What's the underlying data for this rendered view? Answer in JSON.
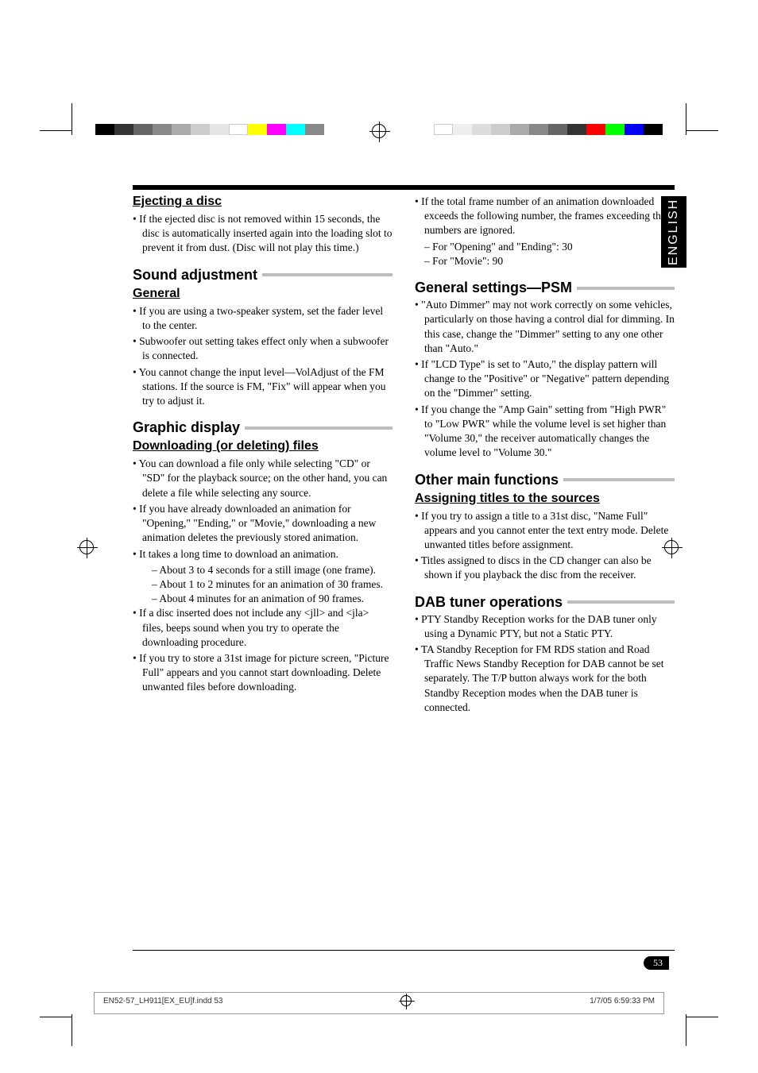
{
  "lang_tab": "ENGLISH",
  "color_bar_left": [
    "#000000",
    "#333333",
    "#666666",
    "#888888",
    "#aaaaaa",
    "#cccccc",
    "#e5e5e5",
    "#ffffff",
    "#ffff00",
    "#ff00ff",
    "#00ffff",
    "#888888"
  ],
  "color_bar_right": [
    "#000000",
    "#0000ff",
    "#00ff00",
    "#ff0000",
    "#333333",
    "#666666",
    "#888888",
    "#aaaaaa",
    "#cccccc",
    "#dddddd",
    "#eeeeee",
    "#ffffff"
  ],
  "left": {
    "s1_sub": "Ejecting a disc",
    "s1_b1": "If the ejected disc is not removed within 15 seconds, the disc is automatically inserted again into the loading slot to prevent it from dust. (Disc will not play this time.)",
    "s2_title": "Sound adjustment",
    "s2_sub": "General",
    "s2_b1": "If you are using a two-speaker system, set the fader level to the center.",
    "s2_b2": "Subwoofer out setting takes effect only when a subwoofer is connected.",
    "s2_b3": "You cannot change the input level—VolAdjust of the FM stations. If the source is FM, \"Fix\" will appear when you try to adjust it.",
    "s3_title": "Graphic display",
    "s3_sub": "Downloading (or deleting) files",
    "s3_b1": "You can download a file only while selecting \"CD\" or \"SD\" for the playback source; on the other hand, you can delete a file while selecting any source.",
    "s3_b2": "If you have already downloaded an animation for \"Opening,\" \"Ending,\" or \"Movie,\" downloading a new animation deletes the previously stored animation.",
    "s3_b3": "It takes a long time to download an animation.",
    "s3_b3a": "About 3 to 4 seconds for a still image (one frame).",
    "s3_b3b": "About 1 to 2 minutes for an animation of 30 frames.",
    "s3_b3c": "About 4 minutes for an animation of 90 frames.",
    "s3_b4": "If a disc inserted does not include any <jll> and <jla> files, beeps sound when you try to operate the downloading procedure.",
    "s3_b5": "If you try to store a 31st image for picture screen, \"Picture Full\" appears and you cannot start downloading. Delete unwanted files before downloading."
  },
  "right": {
    "top_b1": "If the total frame number of an animation downloaded exceeds the following number, the frames exceeding that numbers are ignored.",
    "top_b1a": "For \"Opening\" and  \"Ending\": 30",
    "top_b1b": "For \"Movie\": 90",
    "s4_title": "General settings—PSM",
    "s4_b1": "\"Auto Dimmer\" may not work correctly on some vehicles, particularly on those having a control dial for dimming. In this case, change the \"Dimmer\" setting to any one other than \"Auto.\"",
    "s4_b2": "If \"LCD Type\" is set to \"Auto,\" the display pattern will change to the \"Positive\" or \"Negative\" pattern depending on the \"Dimmer\" setting.",
    "s4_b3": "If you change the \"Amp Gain\" setting from \"High PWR\" to \"Low PWR\" while the volume level is set higher than \"Volume 30,\" the receiver automatically changes the volume level to \"Volume 30.\"",
    "s5_title": "Other main functions",
    "s5_sub": "Assigning titles to the sources",
    "s5_b1": "If you try to assign a title to a 31st disc, \"Name Full\" appears and you cannot enter the text entry mode. Delete unwanted titles before assignment.",
    "s5_b2": "Titles assigned to discs in the CD changer can also be shown if you playback the disc from the receiver.",
    "s6_title": "DAB tuner operations",
    "s6_b1": "PTY Standby Reception works for the DAB tuner only using a Dynamic PTY, but not a Static PTY.",
    "s6_b2": "TA Standby Reception for FM RDS station and Road Traffic News Standby Reception for DAB cannot be set separately. The T/P button always work for the both Standby Reception modes when the DAB tuner is connected."
  },
  "page_number": "53",
  "footer_file": "EN52-57_LH911[EX_EU]f.indd   53",
  "footer_date": "1/7/05   6:59:33 PM"
}
